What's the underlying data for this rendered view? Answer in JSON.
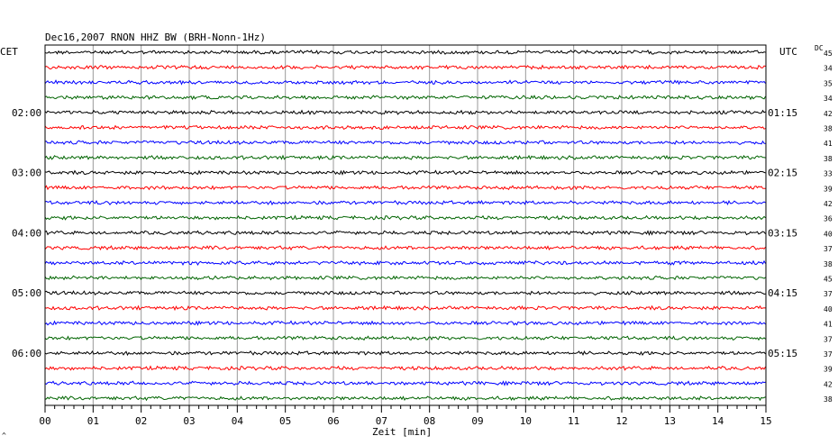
{
  "chart_data": {
    "type": "line",
    "title": "Dec16,2007   RNON HHZ BW (BRH-Nonn-1Hz)",
    "xlabel": "Zeit [min]",
    "xlim": [
      0,
      15
    ],
    "x_ticks": [
      "00",
      "01",
      "02",
      "03",
      "04",
      "05",
      "06",
      "07",
      "08",
      "09",
      "10",
      "11",
      "12",
      "13",
      "14",
      "15"
    ],
    "left_axis_label": "CET",
    "right_axis_label": "UTC",
    "dc_label": "DC",
    "left_time_labels": [
      "02:00",
      "03:00",
      "04:00",
      "05:00",
      "06:00"
    ],
    "right_time_labels": [
      "01:15",
      "02:15",
      "03:15",
      "04:15",
      "05:15"
    ],
    "dc_values": [
      "45",
      "34",
      "35",
      "34",
      "42",
      "38",
      "41",
      "38",
      "33",
      "39",
      "42",
      "36",
      "40",
      "37",
      "38",
      "45",
      "37",
      "40",
      "41",
      "37",
      "37",
      "39",
      "42",
      "38"
    ],
    "trace_colors": [
      "#000000",
      "#ff0000",
      "#0000ff",
      "#006400"
    ],
    "trace_count": 24,
    "grid": true,
    "footer_mark": "^"
  }
}
